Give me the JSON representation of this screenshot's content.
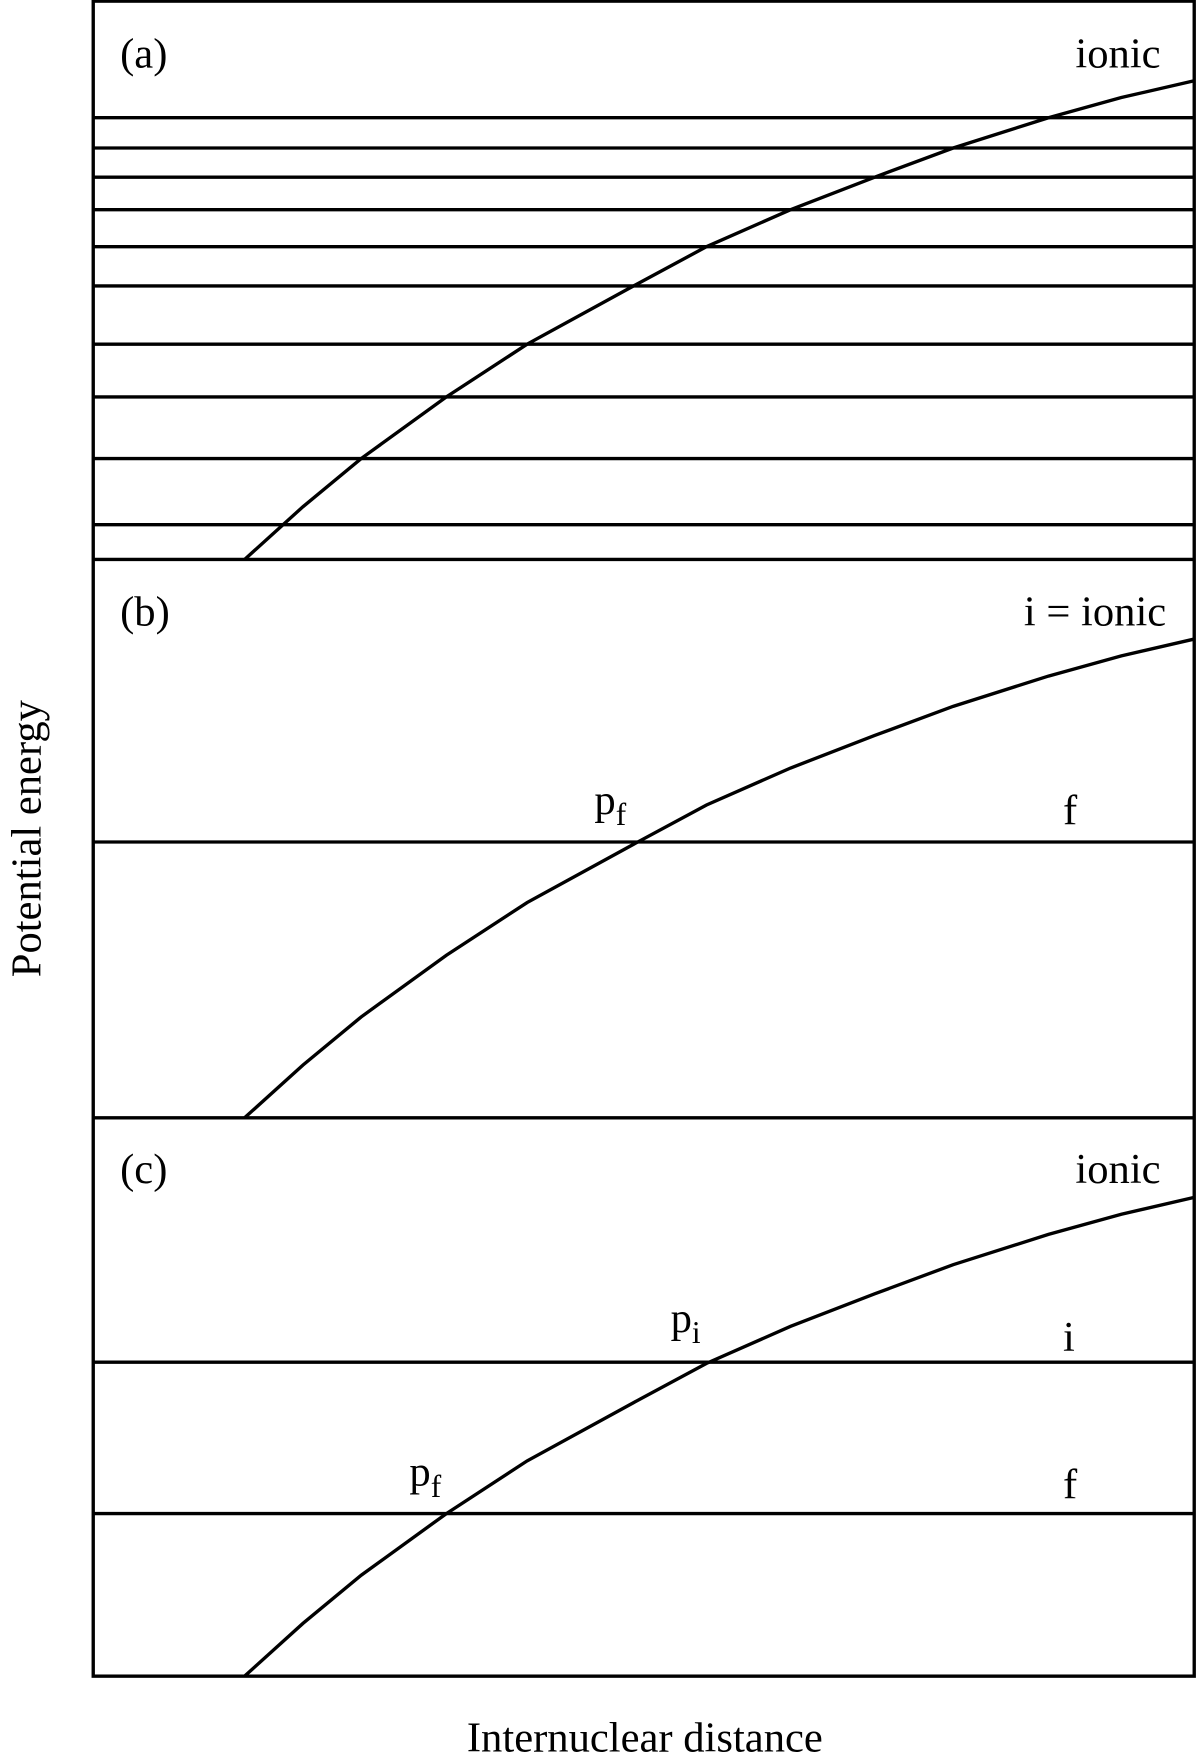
{
  "panels": [
    {
      "tag": "(a)",
      "curve_label": "ionic"
    },
    {
      "tag": "(b)",
      "curve_label": "i = ionic",
      "crossings": [
        {
          "main": "p",
          "sub": "f"
        }
      ],
      "level_labels": [
        "f"
      ]
    },
    {
      "tag": "(c)",
      "curve_label": "ionic",
      "crossings": [
        {
          "main": "p",
          "sub": "i"
        },
        {
          "main": "p",
          "sub": "f"
        }
      ],
      "level_labels": [
        "i",
        "f"
      ]
    }
  ],
  "y_axis_label": "Potential energy",
  "x_axis_label": "Internuclear distance"
}
